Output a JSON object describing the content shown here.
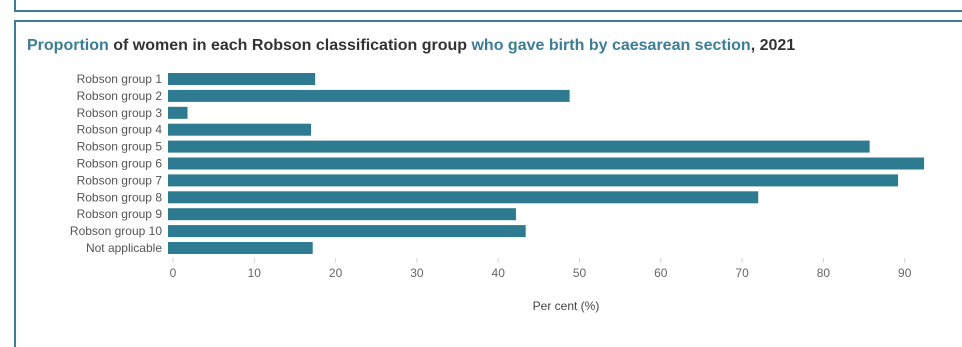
{
  "chart_data": {
    "type": "bar",
    "orientation": "horizontal",
    "title_parts": [
      {
        "text": "Proportion",
        "highlight": true
      },
      {
        "text": " of women in each Robson classification group ",
        "highlight": false
      },
      {
        "text": "who gave birth by caesarean section",
        "highlight": true
      },
      {
        "text": ", 2021",
        "highlight": false
      }
    ],
    "categories": [
      "Robson group 1",
      "Robson group 2",
      "Robson group 3",
      "Robson group 4",
      "Robson group 5",
      "Robson group 6",
      "Robson group 7",
      "Robson group 8",
      "Robson group 9",
      "Robson group 10",
      "Not applicable"
    ],
    "values": [
      18.1,
      49.4,
      2.4,
      17.6,
      86.3,
      93.0,
      89.8,
      72.6,
      42.8,
      44.0,
      17.8
    ],
    "xlabel": "Per cent (%)",
    "ylabel": "",
    "xlim": [
      0,
      95
    ],
    "xticks": [
      0,
      10,
      20,
      30,
      40,
      50,
      60,
      70,
      80,
      90
    ],
    "grid": false,
    "bar_color": "#2e7a90",
    "highlight_color": "#3c7e95",
    "text_color": "#333333"
  }
}
